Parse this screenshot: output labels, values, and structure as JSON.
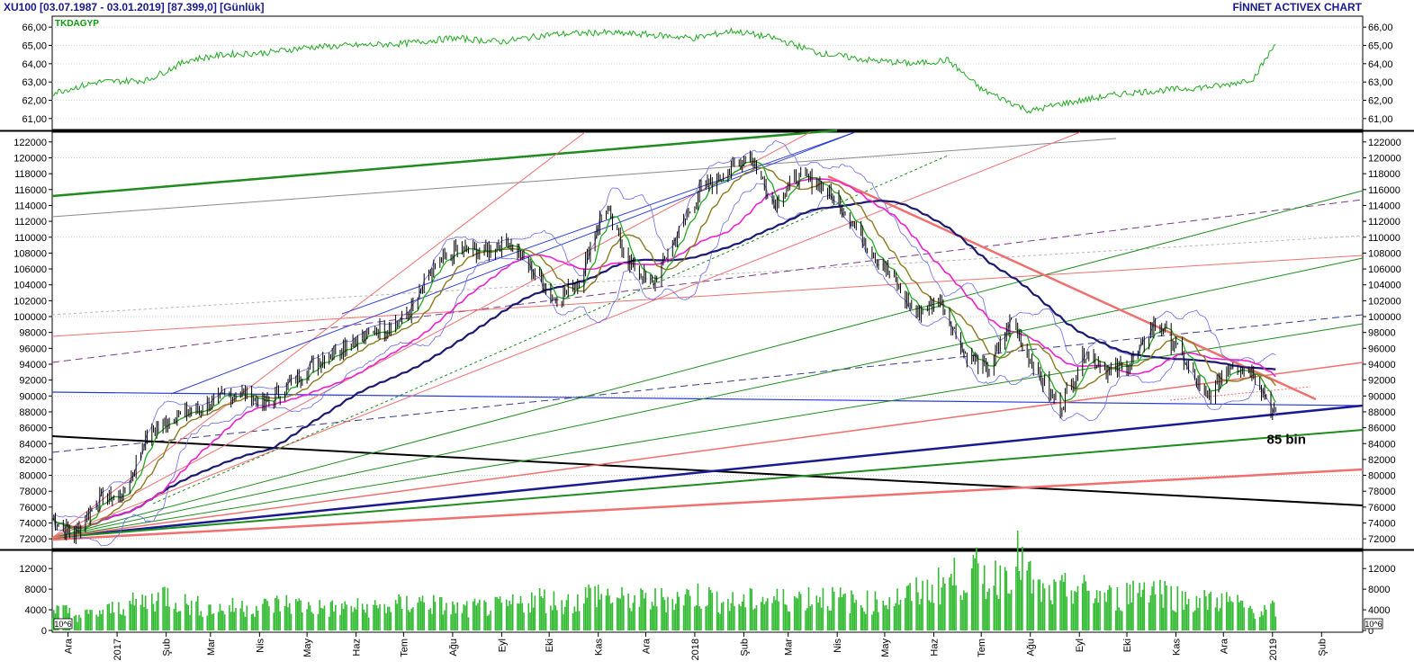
{
  "header": {
    "title": "XU100  [03.07.1987 - 03.01.2019]  [87.399,0]  [Günlük]",
    "brand": "FİNNET ACTIVEX CHART"
  },
  "colors": {
    "price_bar": "#000000",
    "indicator_line": "#22aa22",
    "volume_bar": "#33bb33",
    "ma_navy": "#1a1a70",
    "ma_magenta": "#ee22cc",
    "ma_green": "#22aa22",
    "ma_olive": "#8b7a20",
    "bollinger": "#6a6aee",
    "trend_red": "#f07070",
    "trend_green": "#1e8c1e",
    "trend_blue": "#2a3cd6",
    "trend_black": "#000000",
    "trend_purple": "#7a3a8a"
  },
  "chart_data": [
    {
      "name": "TKDAGYP",
      "type": "line",
      "ylim": [
        60.5,
        66.5
      ],
      "yticks": [
        "61,00",
        "62,00",
        "63,00",
        "64,00",
        "65,00",
        "66,00"
      ],
      "ytick_values": [
        61,
        62,
        63,
        64,
        65,
        66
      ],
      "series": [
        {
          "name": "TKDAGYP",
          "x_date": [
            "2016-11-21",
            "2016-12-20",
            "2017-01-20",
            "2017-02-15",
            "2017-03-10",
            "2017-04-05",
            "2017-05-01",
            "2017-06-01",
            "2017-07-01",
            "2017-08-01",
            "2017-09-01",
            "2017-10-01",
            "2017-11-01",
            "2017-12-01",
            "2018-01-01",
            "2018-01-25",
            "2018-02-20",
            "2018-03-20",
            "2018-04-20",
            "2018-05-20",
            "2018-06-10",
            "2018-07-01",
            "2018-08-01",
            "2018-08-20",
            "2018-09-10",
            "2018-10-01",
            "2018-11-01",
            "2018-12-01",
            "2018-12-20",
            "2019-01-03"
          ],
          "values": [
            62.4,
            63.0,
            63.1,
            64.2,
            64.5,
            64.6,
            64.9,
            65.0,
            65.1,
            65.4,
            65.2,
            65.6,
            65.7,
            65.6,
            65.4,
            65.8,
            65.4,
            64.6,
            64.2,
            64.0,
            64.2,
            62.6,
            61.4,
            61.8,
            62.1,
            62.4,
            62.6,
            62.8,
            63.2,
            65.1
          ]
        }
      ]
    },
    {
      "name": "XU100",
      "type": "line",
      "ylim": [
        71000,
        123000
      ],
      "yticks": [
        "72000",
        "74000",
        "76000",
        "78000",
        "80000",
        "82000",
        "84000",
        "86000",
        "88000",
        "90000",
        "92000",
        "94000",
        "96000",
        "98000",
        "100000",
        "102000",
        "104000",
        "106000",
        "108000",
        "110000",
        "112000",
        "114000",
        "116000",
        "118000",
        "120000",
        "122000"
      ],
      "ytick_values": [
        72000,
        74000,
        76000,
        78000,
        80000,
        82000,
        84000,
        86000,
        88000,
        90000,
        92000,
        94000,
        96000,
        98000,
        100000,
        102000,
        104000,
        106000,
        108000,
        110000,
        112000,
        114000,
        116000,
        118000,
        120000,
        122000
      ],
      "annotations": [
        {
          "text": "85 bin",
          "x_date": "2019-01-02",
          "y": 84000
        }
      ],
      "series": [
        {
          "name": "XU100",
          "x_date": [
            "2016-11-21",
            "2016-12-05",
            "2016-12-20",
            "2017-01-05",
            "2017-01-20",
            "2017-02-05",
            "2017-02-20",
            "2017-03-05",
            "2017-03-20",
            "2017-04-05",
            "2017-04-20",
            "2017-05-05",
            "2017-05-20",
            "2017-06-05",
            "2017-06-20",
            "2017-07-05",
            "2017-07-20",
            "2017-08-05",
            "2017-08-20",
            "2017-09-05",
            "2017-09-20",
            "2017-10-05",
            "2017-10-20",
            "2017-11-05",
            "2017-11-20",
            "2017-12-05",
            "2017-12-20",
            "2018-01-05",
            "2018-01-20",
            "2018-02-05",
            "2018-02-20",
            "2018-03-05",
            "2018-03-20",
            "2018-04-05",
            "2018-04-20",
            "2018-05-05",
            "2018-05-20",
            "2018-06-05",
            "2018-06-20",
            "2018-07-05",
            "2018-07-20",
            "2018-08-05",
            "2018-08-20",
            "2018-09-05",
            "2018-09-20",
            "2018-10-05",
            "2018-10-20",
            "2018-11-05",
            "2018-11-20",
            "2018-12-05",
            "2018-12-20",
            "2019-01-03"
          ],
          "values": [
            74500,
            72500,
            77000,
            77500,
            85000,
            87500,
            88000,
            89500,
            90500,
            89000,
            91500,
            94000,
            96000,
            97500,
            98500,
            100500,
            106000,
            108500,
            108000,
            109500,
            106000,
            102000,
            104500,
            114000,
            107000,
            104000,
            110000,
            116000,
            118000,
            120500,
            114000,
            117500,
            117000,
            113500,
            109000,
            105000,
            100500,
            102000,
            95500,
            93000,
            99500,
            93000,
            88500,
            95500,
            93000,
            94500,
            99500,
            95000,
            89500,
            94000,
            93000,
            87400
          ]
        }
      ]
    },
    {
      "name": "Volume",
      "type": "bar",
      "ylim": [
        0,
        15000
      ],
      "yticks": [
        "0",
        "4000",
        "8000",
        "12000"
      ],
      "ytick_values": [
        0,
        4000,
        8000,
        12000
      ],
      "unit_label": "10^6",
      "x_start": "2016-11-21",
      "x_end": "2019-01-03",
      "series": [
        {
          "name": "Volume",
          "values": [
            4200,
            3600,
            2800,
            3300,
            3900,
            4800,
            5200,
            5900,
            7100,
            5400,
            4800,
            4300,
            4100,
            4600,
            4500,
            4700,
            5200,
            5100,
            4600,
            4400,
            4200,
            4500,
            4300,
            4400,
            4800,
            5100,
            5600,
            4900,
            4300,
            4100,
            4400,
            4500,
            4700,
            5300,
            6400,
            5800,
            5300,
            5800,
            7400,
            6700,
            5900,
            5600,
            5900,
            6100,
            6300,
            6800,
            6700,
            5700,
            5300,
            5700,
            6100,
            5900,
            6200,
            6400,
            6700,
            6100,
            5700,
            5300,
            5600,
            6100,
            6700,
            7400,
            8300,
            9600,
            10400,
            11100,
            9400,
            11900,
            13900,
            8300,
            6700,
            7600,
            8300,
            7100,
            6600,
            6100,
            7900,
            8900,
            7800,
            6400,
            5900,
            5600,
            6100,
            5300,
            4300,
            3600,
            4200
          ]
        }
      ]
    }
  ],
  "x_axis": {
    "labels": [
      "Ara",
      "2017",
      "Şub",
      "Mar",
      "Nis",
      "May",
      "Haz",
      "Tem",
      "Ağu",
      "Eyl",
      "Eki",
      "Kas",
      "Ara",
      "2018",
      "Şub",
      "Mar",
      "Nis",
      "May",
      "Haz",
      "Tem",
      "Ağu",
      "Eyl",
      "Eki",
      "Kas",
      "Ara",
      "2019",
      "Şub"
    ],
    "dates": [
      "2016-12-01",
      "2017-01-01",
      "2017-02-01",
      "2017-03-01",
      "2017-04-01",
      "2017-05-01",
      "2017-06-01",
      "2017-07-01",
      "2017-08-01",
      "2017-09-01",
      "2017-10-01",
      "2017-11-01",
      "2017-12-01",
      "2018-01-01",
      "2018-02-01",
      "2018-03-01",
      "2018-04-01",
      "2018-05-01",
      "2018-06-01",
      "2018-07-01",
      "2018-08-01",
      "2018-09-01",
      "2018-10-01",
      "2018-11-01",
      "2018-12-01",
      "2019-01-01",
      "2019-02-01"
    ],
    "range": [
      "2016-11-21",
      "2019-02-27"
    ]
  }
}
